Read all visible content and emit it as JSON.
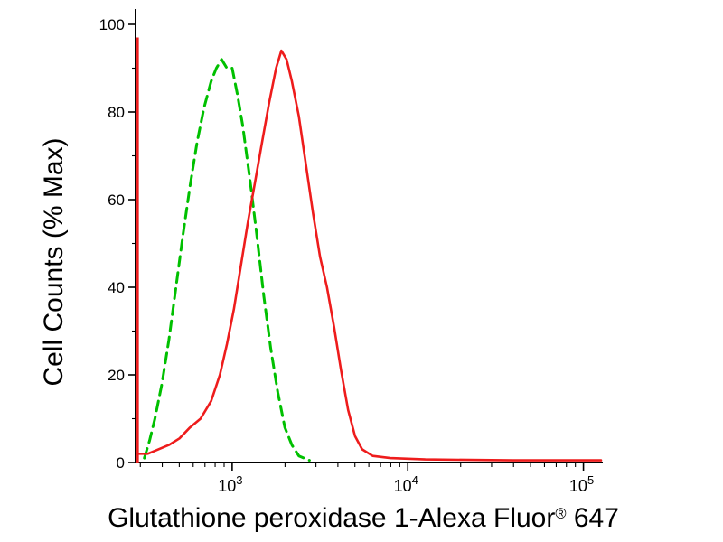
{
  "chart_data": {
    "type": "line",
    "subtype": "flow-cytometry-overlay-histogram",
    "xlabel": "Glutathione peroxidase 1-Alexa Fluor® 647",
    "xlabel_parts": {
      "main": "Glutathione peroxidase 1-Alexa Fluor",
      "sup": "®",
      "suffix": " 647"
    },
    "ylabel": "Cell Counts (% Max)",
    "x_scale": "log10",
    "x_log_range": [
      2.45,
      5.1
    ],
    "x_major_exponents": [
      3,
      4,
      5
    ],
    "ylim": [
      0,
      100
    ],
    "y_major_ticks": [
      0,
      20,
      40,
      60,
      80,
      100
    ],
    "grid": false,
    "legend": "none",
    "axis_spike": {
      "x_log": 2.462,
      "y_range": [
        0,
        97
      ],
      "color": "#ee1c1c",
      "width": 2.6
    },
    "series": [
      {
        "name": "green-dashed-control",
        "color": "#00c000",
        "dash": [
          11,
          7
        ],
        "width": 3,
        "points": [
          [
            2.5,
            1
          ],
          [
            2.53,
            5
          ],
          [
            2.56,
            10
          ],
          [
            2.6,
            18
          ],
          [
            2.64,
            28
          ],
          [
            2.68,
            40
          ],
          [
            2.72,
            52
          ],
          [
            2.76,
            63
          ],
          [
            2.8,
            73
          ],
          [
            2.84,
            81
          ],
          [
            2.88,
            87
          ],
          [
            2.91,
            90
          ],
          [
            2.94,
            92
          ],
          [
            2.97,
            90
          ],
          [
            3.0,
            90
          ],
          [
            3.03,
            84
          ],
          [
            3.06,
            77
          ],
          [
            3.1,
            65
          ],
          [
            3.14,
            52
          ],
          [
            3.18,
            38
          ],
          [
            3.22,
            26
          ],
          [
            3.26,
            16
          ],
          [
            3.3,
            8
          ],
          [
            3.34,
            4
          ],
          [
            3.38,
            1.5
          ],
          [
            3.44,
            0.5
          ]
        ]
      },
      {
        "name": "red-solid-stained",
        "color": "#ee1c1c",
        "dash": null,
        "width": 2.6,
        "points": [
          [
            2.46,
            2
          ],
          [
            2.52,
            2
          ],
          [
            2.58,
            3
          ],
          [
            2.64,
            4
          ],
          [
            2.7,
            5.5
          ],
          [
            2.76,
            8
          ],
          [
            2.82,
            10
          ],
          [
            2.88,
            14
          ],
          [
            2.93,
            20
          ],
          [
            2.97,
            27
          ],
          [
            3.01,
            35
          ],
          [
            3.05,
            45
          ],
          [
            3.09,
            55
          ],
          [
            3.13,
            64
          ],
          [
            3.17,
            73
          ],
          [
            3.21,
            82
          ],
          [
            3.25,
            90
          ],
          [
            3.28,
            94
          ],
          [
            3.31,
            92
          ],
          [
            3.34,
            87
          ],
          [
            3.38,
            79
          ],
          [
            3.42,
            68
          ],
          [
            3.46,
            57
          ],
          [
            3.5,
            47
          ],
          [
            3.54,
            40
          ],
          [
            3.58,
            31
          ],
          [
            3.62,
            21
          ],
          [
            3.66,
            12
          ],
          [
            3.7,
            6
          ],
          [
            3.74,
            3
          ],
          [
            3.8,
            1.5
          ],
          [
            3.9,
            1
          ],
          [
            4.1,
            0.7
          ],
          [
            4.6,
            0.5
          ],
          [
            5.1,
            0.5
          ]
        ]
      }
    ]
  }
}
